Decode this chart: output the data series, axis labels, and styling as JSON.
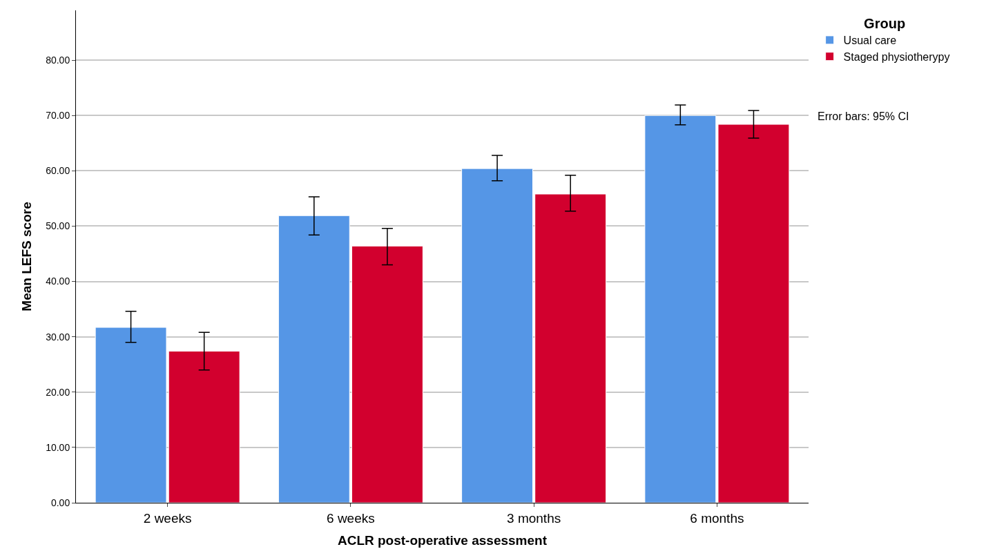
{
  "chart_data": {
    "type": "bar",
    "xlabel": "ACLR post-operative assessment",
    "ylabel": "Mean LEFS score",
    "legend_title": "Group",
    "categories": [
      "2 weeks",
      "6 weeks",
      "3 months",
      "6 months"
    ],
    "series": [
      {
        "name": "Usual care",
        "color": "#5596e6",
        "values": [
          31.7,
          51.9,
          60.4,
          70.0
        ],
        "errors": [
          [
            29.0,
            34.6
          ],
          [
            48.4,
            55.3
          ],
          [
            58.2,
            62.8
          ],
          [
            68.3,
            71.9
          ]
        ]
      },
      {
        "name": "Staged physiotherypy",
        "color": "#d2002e",
        "values": [
          27.4,
          46.4,
          55.8,
          68.4
        ],
        "errors": [
          [
            24.0,
            30.8
          ],
          [
            43.0,
            49.6
          ],
          [
            52.7,
            59.2
          ],
          [
            65.9,
            70.9
          ]
        ]
      }
    ],
    "ylim": [
      0,
      89
    ],
    "yticks": [
      {
        "value": 0,
        "label": "0.00"
      },
      {
        "value": 10,
        "label": "10.00"
      },
      {
        "value": 20,
        "label": "20.00"
      },
      {
        "value": 30,
        "label": "30.00"
      },
      {
        "value": 40,
        "label": "40.00"
      },
      {
        "value": 50,
        "label": "50.00"
      },
      {
        "value": 60,
        "label": "60.00"
      },
      {
        "value": 70,
        "label": "70.00"
      },
      {
        "value": 80,
        "label": "80.00"
      }
    ],
    "grid": "y",
    "legend": "top right",
    "annotations": [
      "Error bars: 95% CI"
    ]
  }
}
